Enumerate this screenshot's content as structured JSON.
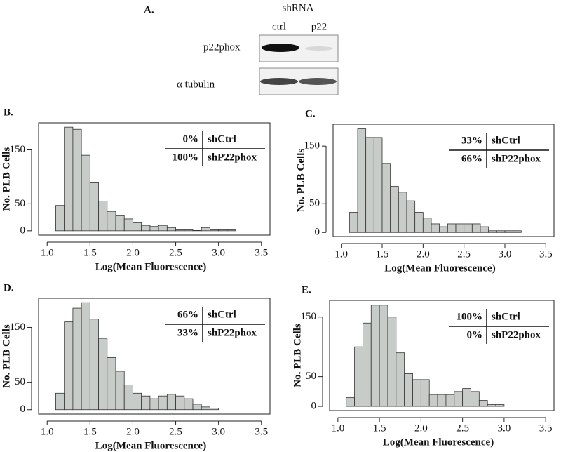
{
  "blot": {
    "panel_label": "A.",
    "group_label": "shRNA",
    "lanes": [
      "ctrl",
      "p22"
    ],
    "rows": [
      "p22phox",
      "α tubulin"
    ]
  },
  "chart_data": [
    {
      "type": "histogram",
      "panel_label": "B.",
      "x_label": "Log(Mean Fluorescence)",
      "y_label": "No. PLB Cells",
      "color": "#c8ccc8",
      "bins": [
        1.1,
        1.2,
        1.3,
        1.4,
        1.5,
        1.6,
        1.7,
        1.8,
        1.9,
        2.0,
        2.1,
        2.2,
        2.3,
        2.4,
        2.5,
        2.6,
        2.7,
        2.8,
        2.9,
        3.0,
        3.1,
        3.2
      ],
      "values": [
        47,
        192,
        188,
        140,
        89,
        55,
        36,
        28,
        22,
        15,
        10,
        8,
        10,
        6,
        3,
        3,
        1,
        6,
        3,
        3,
        3
      ],
      "xlim": [
        0.9,
        3.6
      ],
      "ylim": [
        -8,
        200
      ],
      "xticks": [
        {
          "value": 1.0,
          "label": "1.0"
        },
        1.5,
        {
          "value": 2.0,
          "label": "2.0"
        },
        2.5,
        {
          "value": 3.0,
          "label": "3.0"
        },
        3.5
      ],
      "yticks": [
        0,
        50,
        150
      ],
      "inset": [
        [
          "0%",
          "shCtrl"
        ],
        [
          "100%",
          "shP22phox"
        ]
      ]
    },
    {
      "type": "histogram",
      "panel_label": "C.",
      "x_label": "Log(Mean Fluorescence)",
      "y_label": "No. PLB Cells",
      "color": "#c8ccc8",
      "bins": [
        1.1,
        1.2,
        1.3,
        1.4,
        1.5,
        1.6,
        1.7,
        1.8,
        1.9,
        2.0,
        2.1,
        2.2,
        2.3,
        2.4,
        2.5,
        2.6,
        2.7,
        2.8,
        2.9,
        3.0,
        3.1,
        3.2
      ],
      "values": [
        35,
        180,
        165,
        165,
        120,
        80,
        70,
        55,
        35,
        25,
        15,
        10,
        15,
        15,
        15,
        15,
        10,
        3,
        3,
        3,
        3
      ],
      "xlim": [
        0.9,
        3.6
      ],
      "ylim": [
        -7,
        188
      ],
      "xticks": [
        {
          "value": 1.0,
          "label": "1.0"
        },
        1.5,
        {
          "value": 2.0,
          "label": "2.0"
        },
        2.5,
        {
          "value": 3.0,
          "label": "3.0"
        },
        3.5
      ],
      "yticks": [
        0,
        50,
        150
      ],
      "inset": [
        [
          "33%",
          "shCtrl"
        ],
        [
          "66%",
          "shP22phox"
        ]
      ]
    },
    {
      "type": "histogram",
      "panel_label": "D.",
      "x_label": "Log(Mean Fluorescence)",
      "y_label": "No. PLB Cells",
      "color": "#c8ccc8",
      "bins": [
        1.1,
        1.2,
        1.3,
        1.4,
        1.5,
        1.6,
        1.7,
        1.8,
        1.9,
        2.0,
        2.1,
        2.2,
        2.3,
        2.4,
        2.5,
        2.6,
        2.7,
        2.8,
        2.9,
        3.0
      ],
      "values": [
        30,
        160,
        185,
        195,
        165,
        130,
        95,
        70,
        45,
        30,
        25,
        20,
        25,
        28,
        25,
        20,
        10,
        5,
        3
      ],
      "xlim": [
        0.9,
        3.6
      ],
      "ylim": [
        -8,
        203
      ],
      "xticks": [
        {
          "value": 1.0,
          "label": "1.0"
        },
        1.5,
        {
          "value": 2.0,
          "label": "2.0"
        },
        2.5,
        {
          "value": 3.0,
          "label": "3.0"
        },
        3.5
      ],
      "yticks": [
        0,
        50,
        150
      ],
      "inset": [
        [
          "66%",
          "shCtrl"
        ],
        [
          "33%",
          "shP22phox"
        ]
      ]
    },
    {
      "type": "histogram",
      "panel_label": "E.",
      "x_label": "Log(Mean Fluorescence)",
      "y_label": "No. PLB Cells",
      "color": "#c8ccc8",
      "bins": [
        1.1,
        1.2,
        1.3,
        1.4,
        1.5,
        1.6,
        1.7,
        1.8,
        1.9,
        2.0,
        2.1,
        2.2,
        2.3,
        2.4,
        2.5,
        2.6,
        2.7,
        2.8,
        2.9,
        3.0
      ],
      "values": [
        15,
        100,
        140,
        170,
        170,
        150,
        90,
        55,
        45,
        45,
        20,
        20,
        20,
        25,
        30,
        25,
        10,
        3,
        3
      ],
      "xlim": [
        0.9,
        3.6
      ],
      "ylim": [
        -7,
        178
      ],
      "xticks": [
        {
          "value": 1.0,
          "label": "1.0"
        },
        1.5,
        {
          "value": 2.0,
          "label": "2.0"
        },
        2.5,
        {
          "value": 3.0,
          "label": "3.0"
        },
        3.5
      ],
      "yticks": [
        0,
        50,
        150
      ],
      "inset": [
        [
          "100%",
          "shCtrl"
        ],
        [
          "0%",
          "shP22phox"
        ]
      ]
    }
  ]
}
